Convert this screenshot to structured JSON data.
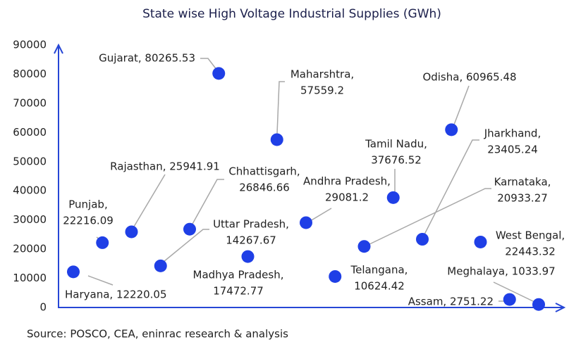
{
  "chart_data": {
    "type": "scatter",
    "title": "State wise  High Voltage Industrial Supplies (GWh)",
    "values": [
      12220.05,
      22216.09,
      25941.91,
      14267.67,
      26846.66,
      80265.53,
      17472.77,
      57559.2,
      29081.2,
      10624.42,
      20933.27,
      37676.52,
      23405.24,
      60965.48,
      22443.32,
      2751.22,
      1033.97
    ],
    "value_labels": [
      [
        "Haryana, 12220.05"
      ],
      [
        "Punjab,",
        "22216.09"
      ],
      [
        "Rajasthan, 25941.91"
      ],
      [
        "Uttar Pradesh,",
        "14267.67"
      ],
      [
        "Chhattisgarh,",
        "26846.66"
      ],
      [
        "Gujarat, 80265.53"
      ],
      [
        "Madhya Pradesh,",
        "17472.77"
      ],
      [
        "Maharshtra,",
        "57559.2"
      ],
      [
        "Andhra Pradesh,",
        "29081.2"
      ],
      [
        "Telangana,",
        "10624.42"
      ],
      [
        "Karnataka,",
        "20933.27"
      ],
      [
        "Tamil Nadu,",
        "37676.52"
      ],
      [
        "Jharkhand,",
        "23405.24"
      ],
      [
        "Odisha, 60965.48"
      ],
      [
        "West Bengal,",
        "22443.32"
      ],
      [
        "Assam, 2751.22"
      ],
      [
        "Meghalaya, 1033.97"
      ]
    ],
    "color": "#1f3fe6",
    "ylim": [
      0,
      90000
    ],
    "yticks": [
      0,
      10000,
      20000,
      30000,
      40000,
      50000,
      60000,
      70000,
      80000,
      90000
    ],
    "source": "Source: POSCO, CEA, eninrac research & analysis"
  }
}
